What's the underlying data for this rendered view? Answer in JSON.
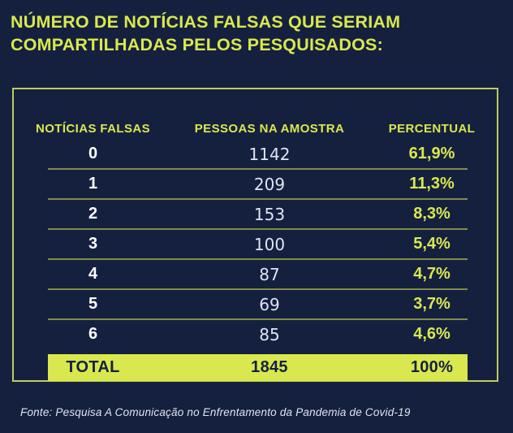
{
  "title": {
    "line1": "NÚMERO DE NOTÍCIAS FALSAS QUE SERIAM",
    "line2": "COMPARTILHADAS PELOS PESQUISADOS:"
  },
  "table": {
    "headers": [
      "NOTÍCIAS FALSAS",
      "PESSOAS NA AMOSTRA",
      "PERCENTUAL"
    ],
    "rows": [
      {
        "falsas": "0",
        "pessoas": "1142",
        "percentual": "61,9%"
      },
      {
        "falsas": "1",
        "pessoas": "209",
        "percentual": "11,3%"
      },
      {
        "falsas": "2",
        "pessoas": "153",
        "percentual": "8,3%"
      },
      {
        "falsas": "3",
        "pessoas": "100",
        "percentual": "5,4%"
      },
      {
        "falsas": "4",
        "pessoas": "87",
        "percentual": "4,7%"
      },
      {
        "falsas": "5",
        "pessoas": "69",
        "percentual": "3,7%"
      },
      {
        "falsas": "6",
        "pessoas": "85",
        "percentual": "4,6%"
      }
    ],
    "total": {
      "label": "TOTAL",
      "pessoas": "1845",
      "percentual": "100%"
    }
  },
  "footer": {
    "source": "Fonte: Pesquisa A Comunicação no Enfrentamento da Pandemia de Covid-19"
  },
  "colors": {
    "background": "#15203f",
    "accent": "#d9e84e",
    "border": "#bccd5c",
    "text_light": "#dfe4f2"
  },
  "chart_data": {
    "type": "table",
    "title": "NÚMERO DE NOTÍCIAS FALSAS QUE SERIAM COMPARTILHADAS PELOS PESQUISADOS:",
    "columns": [
      "NOTÍCIAS FALSAS",
      "PESSOAS NA AMOSTRA",
      "PERCENTUAL"
    ],
    "rows": [
      [
        "0",
        1142,
        "61,9%"
      ],
      [
        "1",
        209,
        "11,3%"
      ],
      [
        "2",
        153,
        "8,3%"
      ],
      [
        "3",
        100,
        "5,4%"
      ],
      [
        "4",
        87,
        "4,7%"
      ],
      [
        "5",
        69,
        "3,7%"
      ],
      [
        "6",
        85,
        "4,6%"
      ]
    ],
    "total": [
      "TOTAL",
      1845,
      "100%"
    ],
    "source": "Fonte: Pesquisa A Comunicação no Enfrentamento da Pandemia de Covid-19",
    "legend_position": "none",
    "grid": "horizontal-dividers"
  }
}
